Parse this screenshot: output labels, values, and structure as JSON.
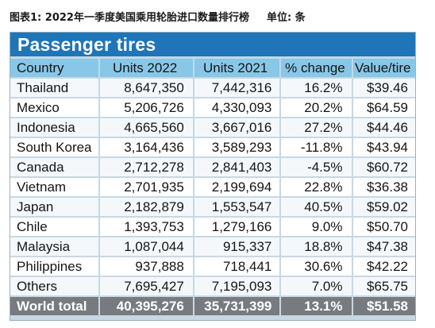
{
  "caption": {
    "title": "图表1: 2022年一季度美国乘用轮胎进口数量排行榜",
    "unit": "单位: 条"
  },
  "banner": "Passenger tires",
  "columns": [
    "Country",
    "Units 2022",
    "Units 2021",
    "% change",
    "Value/tire"
  ],
  "rows": [
    [
      "Thailand",
      "8,647,350",
      "7,442,316",
      "16.2%",
      "$39.46"
    ],
    [
      "Mexico",
      "5,206,726",
      "4,330,093",
      "20.2%",
      "$64.59"
    ],
    [
      "Indonesia",
      "4,665,560",
      "3,667,016",
      "27.2%",
      "$44.46"
    ],
    [
      "South Korea",
      "3,164,436",
      "3,589,293",
      "-11.8%",
      "$43.94"
    ],
    [
      "Canada",
      "2,712,278",
      "2,841,403",
      "-4.5%",
      "$60.72"
    ],
    [
      "Vietnam",
      "2,701,935",
      "2,199,694",
      "22.8%",
      "$36.38"
    ],
    [
      "Japan",
      "2,182,879",
      "1,553,547",
      "40.5%",
      "$59.02"
    ],
    [
      "Chile",
      "1,393,753",
      "1,279,166",
      "9.0%",
      "$50.70"
    ],
    [
      "Malaysia",
      "1,087,044",
      "915,337",
      "18.8%",
      "$47.38"
    ],
    [
      "Philippines",
      "937,888",
      "718,441",
      "30.6%",
      "$42.22"
    ],
    [
      "Others",
      "7,695,427",
      "7,195,093",
      "7.0%",
      "$65.75"
    ]
  ],
  "total": [
    "World total",
    "40,395,276",
    "35,731,399",
    "13.1%",
    "$51.58"
  ],
  "colors": {
    "banner": "#1f75b7",
    "header": "#88c7e8",
    "panel": "#c7d8e3",
    "total": "#777b80"
  }
}
